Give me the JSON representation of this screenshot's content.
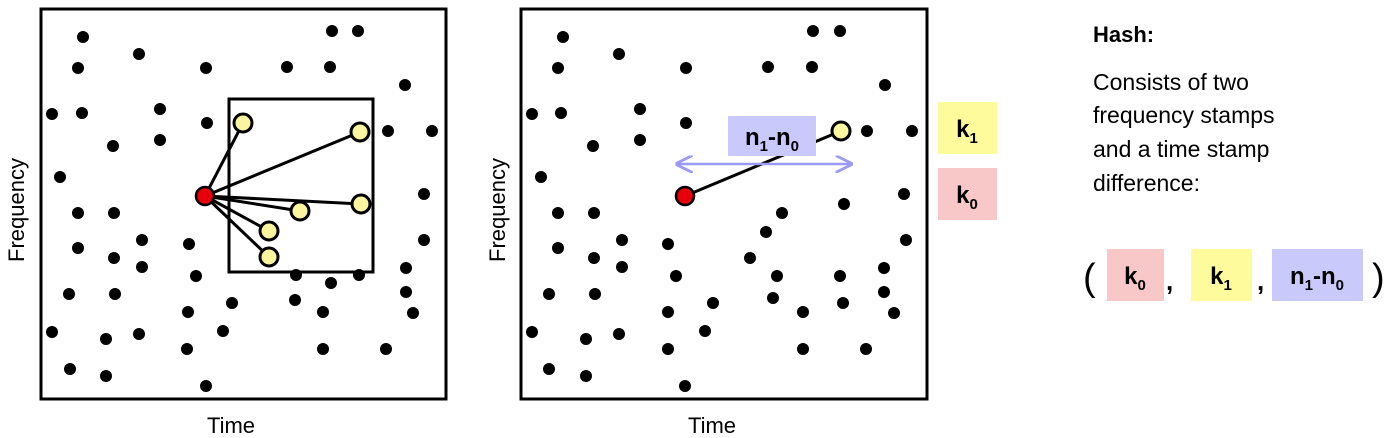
{
  "axis_label_x": "Time",
  "axis_label_y": "Frequency",
  "key_k1": {
    "base": "k",
    "sub": "1"
  },
  "key_k0": {
    "base": "k",
    "sub": "0"
  },
  "diff_label": {
    "a": "n",
    "a_sub": "1",
    "dash": "-",
    "b": "n",
    "b_sub": "0"
  },
  "hash": {
    "title": "Hash:",
    "desc_lines": [
      "Consists of two",
      "frequency stamps",
      "and a time stamp",
      "difference:"
    ],
    "open_paren": "(",
    "close_paren": ")",
    "comma": ","
  },
  "colors": {
    "anchor": "#e8000b",
    "target": "#fbf59f",
    "k1_box": "#fdfb9c",
    "k0_box": "#f8c7c7",
    "diff_box": "#c9c9fb",
    "arrow": "#9b9bf5"
  }
}
